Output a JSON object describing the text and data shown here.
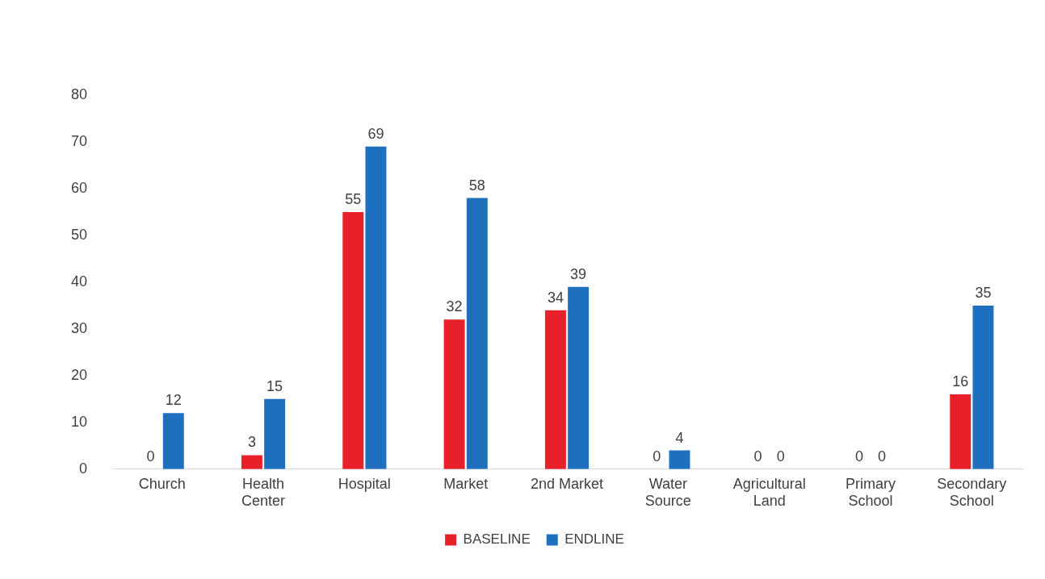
{
  "chart_data": {
    "type": "bar",
    "categories": [
      "Church",
      "Health Center",
      "Hospital",
      "Market",
      "2nd Market",
      "Water Source",
      "Agricultural Land",
      "Primary School",
      "Secondary School"
    ],
    "series": [
      {
        "name": "BASELINE",
        "color": "#e8202a",
        "values": [
          0,
          3,
          55,
          32,
          34,
          0,
          0,
          0,
          16
        ]
      },
      {
        "name": "ENDLINE",
        "color": "#1f6fbf",
        "values": [
          12,
          15,
          69,
          58,
          39,
          4,
          0,
          0,
          35
        ]
      }
    ],
    "ylim": [
      0,
      80
    ],
    "yticks": [
      0,
      10,
      20,
      30,
      40,
      50,
      60,
      70,
      80
    ],
    "grid": false,
    "legend": "bottom",
    "data_labels": true
  }
}
